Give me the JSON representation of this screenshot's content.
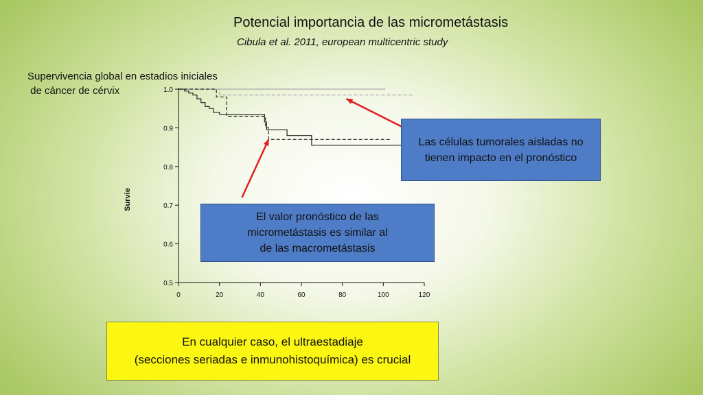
{
  "slide": {
    "title": "Potencial importancia de las micrometástasis",
    "subtitle": "Cibula et al. 2011, european multicentric study",
    "chart_heading": [
      "Supervivencia global en estadios iniciales",
      " de cáncer de cérvix"
    ]
  },
  "callouts": {
    "isolated_cells": [
      "Las células tumorales aisladas no",
      "tienen impacto en el pronóstico"
    ],
    "micrometastasis": [
      "El valor pronóstico de las",
      "micrometástasis es similar al",
      "de las macrometástasis"
    ],
    "ultrastaging": [
      "En cualquier caso, el ultraestadiaje",
      "(secciones seriadas e inmunohistoquímica) es crucial"
    ]
  },
  "colors": {
    "arrow": "#e02020",
    "callout_blue": "#4e7cc6",
    "callout_yellow": "#fcf712"
  },
  "chart_data": {
    "type": "line",
    "ylabel": "Survie",
    "xlim": [
      0,
      120
    ],
    "ylim": [
      0.5,
      1.0
    ],
    "x_ticks": [
      "0",
      "20",
      "40",
      "60",
      "80",
      "100",
      "120"
    ],
    "y_ticks": [
      "0.5",
      "0.6",
      "0.7",
      "0.8",
      "0.9",
      "1.0"
    ],
    "series": [
      {
        "style": "solid-gray",
        "points": [
          [
            0,
            1.0
          ],
          [
            101,
            1.0
          ]
        ]
      },
      {
        "style": "dashed-gray",
        "points": [
          [
            0,
            1.0
          ],
          [
            20,
            1.0
          ],
          [
            20,
            0.985
          ],
          [
            115,
            0.985
          ]
        ]
      },
      {
        "style": "dashed-black",
        "points": [
          [
            0,
            1.0
          ],
          [
            18.5,
            1.0
          ],
          [
            18.5,
            0.98
          ],
          [
            23.5,
            0.98
          ],
          [
            23.5,
            0.93
          ],
          [
            42.5,
            0.93
          ],
          [
            42.5,
            0.9
          ],
          [
            44,
            0.9
          ],
          [
            44,
            0.87
          ],
          [
            104,
            0.87
          ]
        ]
      },
      {
        "style": "solid-black",
        "points": [
          [
            0,
            1.0
          ],
          [
            3,
            1.0
          ],
          [
            3,
            0.995
          ],
          [
            5,
            0.995
          ],
          [
            5,
            0.99
          ],
          [
            7,
            0.99
          ],
          [
            7,
            0.985
          ],
          [
            9,
            0.985
          ],
          [
            9,
            0.975
          ],
          [
            11,
            0.975
          ],
          [
            11,
            0.965
          ],
          [
            13,
            0.965
          ],
          [
            13,
            0.955
          ],
          [
            15,
            0.955
          ],
          [
            15,
            0.95
          ],
          [
            17,
            0.95
          ],
          [
            17,
            0.94
          ],
          [
            20,
            0.94
          ],
          [
            20,
            0.935
          ],
          [
            42,
            0.935
          ],
          [
            42,
            0.915
          ],
          [
            43,
            0.915
          ],
          [
            43,
            0.895
          ],
          [
            53,
            0.895
          ],
          [
            53,
            0.88
          ],
          [
            65,
            0.88
          ],
          [
            65,
            0.855
          ],
          [
            110,
            0.855
          ]
        ]
      }
    ],
    "arrows": [
      {
        "from": [
          112,
          0.895
        ],
        "to": [
          82,
          0.975
        ]
      },
      {
        "from": [
          31,
          0.72
        ],
        "to": [
          44,
          0.87
        ]
      }
    ]
  }
}
